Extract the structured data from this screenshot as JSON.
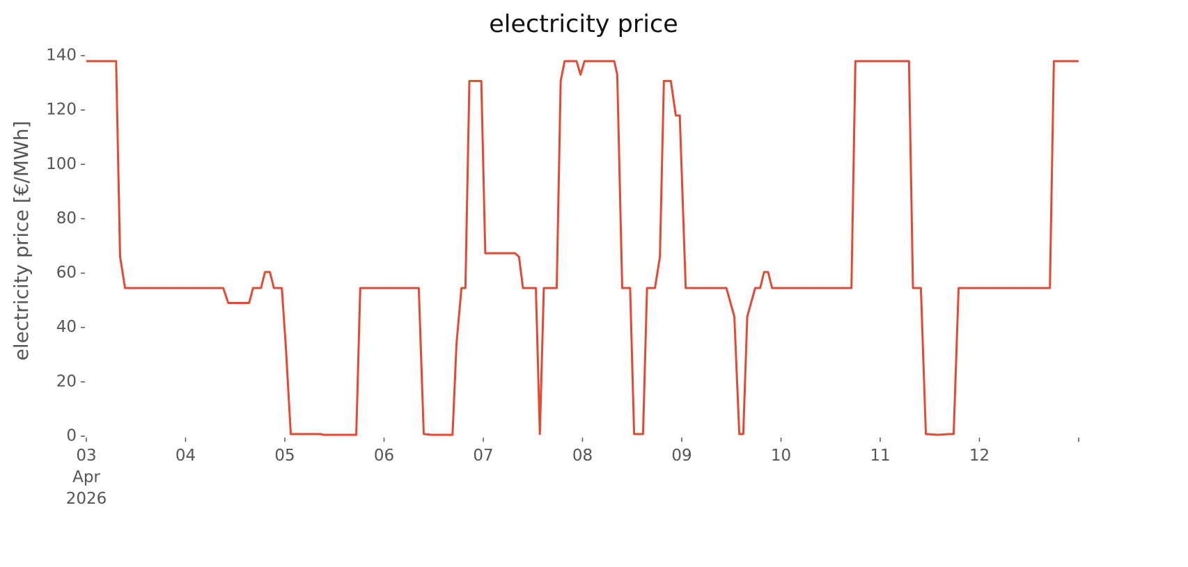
{
  "chart_data": {
    "type": "line",
    "title": "electricity price",
    "ylabel": "electricity price [€/MWh]",
    "x": [
      3.0,
      3.3,
      3.34,
      3.39,
      4.38,
      4.43,
      4.64,
      4.68,
      4.76,
      4.8,
      4.85,
      4.89,
      4.97,
      5.01,
      5.06,
      5.36,
      5.39,
      5.72,
      5.76,
      6.35,
      6.4,
      6.48,
      6.69,
      6.73,
      6.78,
      6.82,
      6.86,
      6.98,
      7.02,
      7.32,
      7.36,
      7.4,
      7.53,
      7.57,
      7.61,
      7.74,
      7.78,
      7.82,
      7.94,
      7.98,
      8.02,
      8.32,
      8.35,
      8.4,
      8.48,
      8.52,
      8.61,
      8.65,
      8.73,
      8.78,
      8.82,
      8.89,
      8.94,
      8.98,
      9.04,
      9.45,
      9.53,
      9.58,
      9.62,
      9.66,
      9.74,
      9.79,
      9.83,
      9.87,
      9.91,
      10.71,
      10.75,
      11.29,
      11.33,
      11.41,
      11.46,
      11.58,
      11.7,
      11.74,
      11.79,
      12.71,
      12.75,
      13.0
    ],
    "values": [
      138,
      138,
      66,
      54.5,
      54.5,
      49,
      49,
      54.5,
      54.5,
      60.4,
      60.4,
      54.5,
      54.5,
      33,
      0.8,
      0.8,
      0.5,
      0.5,
      54.5,
      54.5,
      0.8,
      0.5,
      0.5,
      34,
      54.5,
      54.5,
      130.7,
      130.7,
      67.3,
      67.3,
      66,
      54.5,
      54.5,
      0.8,
      54.5,
      54.5,
      130.7,
      138,
      138,
      133,
      138,
      138,
      133,
      54.5,
      54.5,
      0.8,
      0.8,
      54.5,
      54.5,
      66,
      130.7,
      130.7,
      118,
      118,
      54.5,
      54.5,
      44,
      0.8,
      0.8,
      44,
      54.5,
      54.5,
      60.4,
      60.4,
      54.5,
      54.5,
      138,
      138,
      54.5,
      54.5,
      0.8,
      0.5,
      0.8,
      0.8,
      54.5,
      54.5,
      138,
      138
    ],
    "color": "#e24a33",
    "xlim": [
      3,
      13
    ],
    "xticks": [
      {
        "value": 3,
        "label": "03\nApr\n2026"
      },
      {
        "value": 4,
        "label": "04"
      },
      {
        "value": 5,
        "label": "05"
      },
      {
        "value": 6,
        "label": "06"
      },
      {
        "value": 7,
        "label": "07"
      },
      {
        "value": 8,
        "label": "08"
      },
      {
        "value": 9,
        "label": "09"
      },
      {
        "value": 10,
        "label": "10"
      },
      {
        "value": 11,
        "label": "11"
      },
      {
        "value": 12,
        "label": "12"
      },
      {
        "value": 13,
        "label": null
      }
    ],
    "ylim": [
      0,
      140
    ],
    "yticks": [
      0,
      20,
      40,
      60,
      80,
      100,
      120,
      140
    ],
    "grid": false
  }
}
